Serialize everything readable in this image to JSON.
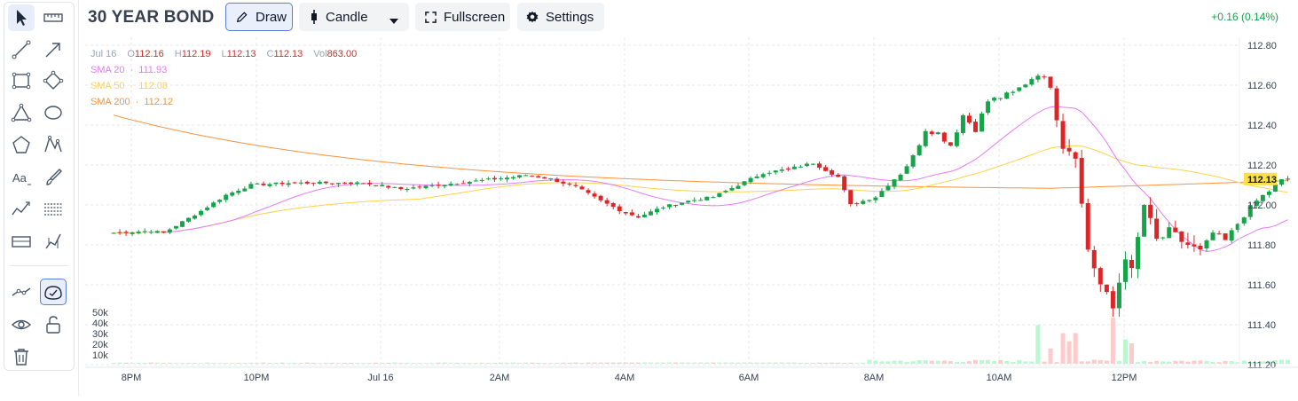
{
  "symbol": {
    "title": "30 YEAR BOND"
  },
  "header": {
    "draw_label": "Draw",
    "chart_type_label": "Candle",
    "fullscreen_label": "Fullscreen",
    "settings_label": "Settings",
    "change_text": "+0.16 (0.14%)"
  },
  "toolbar": {
    "tools": [
      "pointer-icon",
      "ruler-icon",
      "line-icon",
      "arrow-icon",
      "rectangle-icon",
      "rotated-rectangle-icon",
      "triangle-icon",
      "ellipse-icon",
      "polygon-icon",
      "path-icon",
      "text-icon",
      "brush-icon",
      "trend-icon",
      "fib-icon",
      "range-icon",
      "position-icon",
      "lock-line-icon",
      "magnet-icon",
      "eye-icon",
      "unlock-icon",
      "trash-icon"
    ]
  },
  "ohlc_legend": {
    "date": "Jul 16",
    "o_label": "O",
    "o": "112.16",
    "h_label": "H",
    "h": "112.19",
    "l_label": "L",
    "l": "112.13",
    "c_label": "C",
    "c": "112.13",
    "vol_label": "Vol",
    "vol": "863.00"
  },
  "sma_legend": [
    {
      "label": "SMA 20",
      "value": "111.93",
      "color": "#e879f9"
    },
    {
      "label": "SMA 50",
      "value": "112.08",
      "color": "#fcd34d"
    },
    {
      "label": "SMA 200",
      "value": "112.12",
      "color": "#fb923c"
    }
  ],
  "colors": {
    "up": "#16a34a",
    "down": "#dc2626",
    "vol_up": "#bbf7d0",
    "vol_down": "#fecaca",
    "grid": "#e5e7eb",
    "price_tag": "#fde047"
  },
  "chart_data": {
    "type": "candlestick",
    "price_axis": {
      "ticks": [
        "112.80",
        "112.60",
        "112.40",
        "112.20",
        "112.00",
        "111.80",
        "111.60",
        "111.40",
        "111.20"
      ],
      "range": [
        111.2,
        112.8
      ]
    },
    "time_axis": {
      "ticks": [
        "8PM",
        "10PM",
        "Jul 16",
        "2AM",
        "4AM",
        "6AM",
        "8AM",
        "10AM",
        "12PM"
      ]
    },
    "volume_axis": {
      "ticks": [
        "50k",
        "40k",
        "30k",
        "20k",
        "10k"
      ]
    },
    "last_price": "112.13",
    "anchors": [
      [
        0,
        111.86
      ],
      [
        6,
        111.87
      ],
      [
        8,
        111.86
      ],
      [
        14,
        111.97
      ],
      [
        18,
        112.05
      ],
      [
        22,
        112.1
      ],
      [
        28,
        112.11
      ],
      [
        34,
        112.11
      ],
      [
        40,
        112.11
      ],
      [
        46,
        112.08
      ],
      [
        52,
        112.1
      ],
      [
        58,
        112.12
      ],
      [
        64,
        112.14
      ],
      [
        66,
        112.15
      ],
      [
        70,
        112.13
      ],
      [
        74,
        112.09
      ],
      [
        78,
        112.02
      ],
      [
        82,
        111.96
      ],
      [
        84,
        111.94
      ],
      [
        88,
        111.99
      ],
      [
        92,
        112.02
      ],
      [
        96,
        112.04
      ],
      [
        100,
        112.1
      ],
      [
        104,
        112.16
      ],
      [
        108,
        112.18
      ],
      [
        112,
        112.21
      ],
      [
        116,
        112.14
      ],
      [
        118,
        112.0
      ],
      [
        122,
        112.04
      ],
      [
        126,
        112.16
      ],
      [
        128,
        112.24
      ],
      [
        130,
        112.38
      ],
      [
        132,
        112.36
      ],
      [
        134,
        112.3
      ],
      [
        136,
        112.45
      ],
      [
        138,
        112.38
      ],
      [
        140,
        112.52
      ],
      [
        144,
        112.56
      ],
      [
        148,
        112.66
      ],
      [
        150,
        112.6
      ],
      [
        152,
        112.3
      ],
      [
        154,
        112.26
      ],
      [
        155,
        112.0
      ],
      [
        156,
        111.78
      ],
      [
        158,
        111.6
      ],
      [
        160,
        111.48
      ],
      [
        162,
        111.75
      ],
      [
        163,
        111.66
      ],
      [
        165,
        112.0
      ],
      [
        167,
        111.82
      ],
      [
        169,
        111.86
      ],
      [
        172,
        111.8
      ],
      [
        174,
        111.76
      ],
      [
        176,
        111.86
      ],
      [
        178,
        111.82
      ],
      [
        181,
        111.95
      ],
      [
        183,
        112.02
      ],
      [
        185,
        112.07
      ],
      [
        187,
        112.12
      ],
      [
        188,
        112.14
      ]
    ],
    "volume_spikes": [
      [
        148,
        38
      ],
      [
        150,
        15
      ],
      [
        152,
        30
      ],
      [
        153,
        22
      ],
      [
        154,
        30
      ],
      [
        160,
        45
      ],
      [
        162,
        24
      ],
      [
        163,
        20
      ]
    ]
  }
}
